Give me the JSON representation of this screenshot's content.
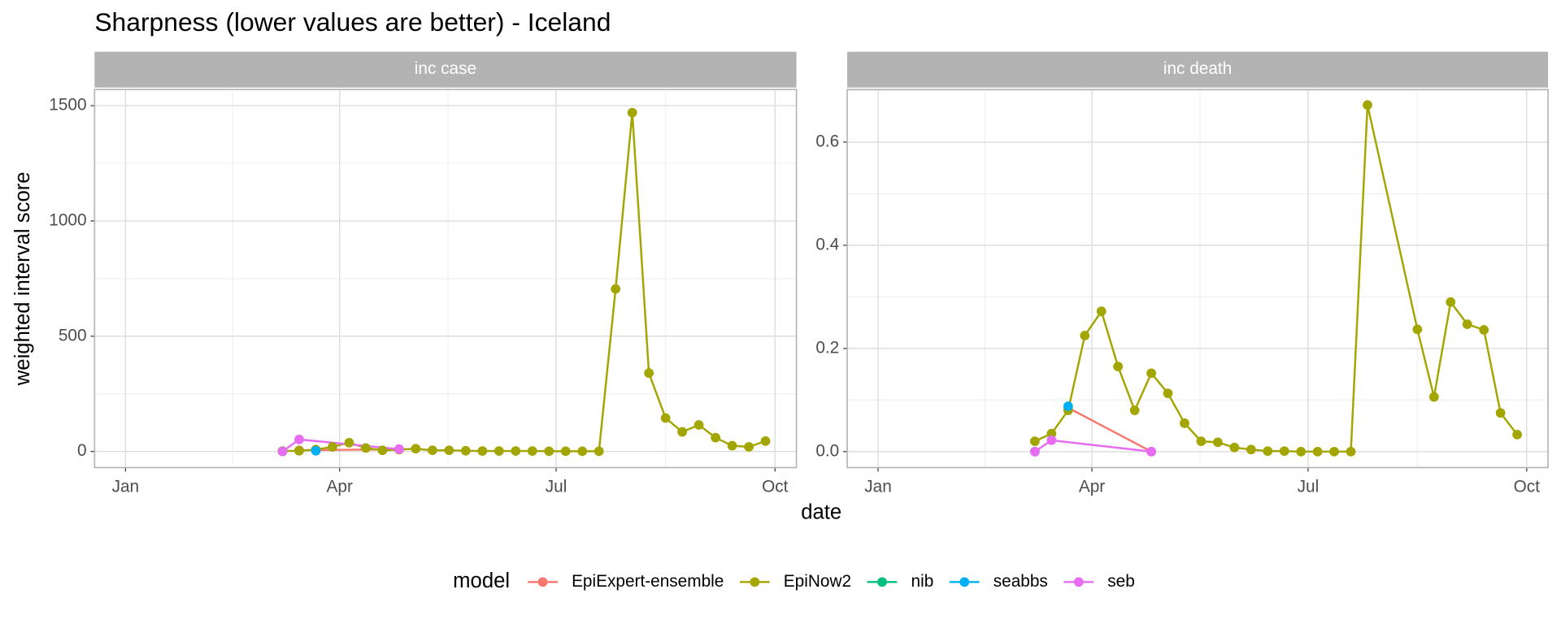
{
  "title": "Sharpness (lower values are better) - Iceland",
  "x_label": "date",
  "y_label": "weighted interval score",
  "legend": {
    "title": "model",
    "position": "bottom"
  },
  "chart_data": [
    {
      "type": "line",
      "facet": "inc case",
      "grid": true,
      "xlim": [
        -13,
        282
      ],
      "ylim": [
        -70,
        1570
      ],
      "xticks": [
        {
          "value": 0,
          "label": "Jan"
        },
        {
          "value": 90,
          "label": "Apr"
        },
        {
          "value": 181,
          "label": "Jul"
        },
        {
          "value": 273,
          "label": "Oct"
        }
      ],
      "yticks": [
        0,
        500,
        1000,
        1500
      ],
      "series": [
        {
          "name": "EpiExpert-ensemble",
          "color": "#F8766D",
          "x": [
            73,
            115
          ],
          "values": [
            5,
            10
          ]
        },
        {
          "name": "EpiNow2",
          "color": "#A3A500",
          "x": [
            66,
            73,
            80,
            87,
            94,
            101,
            108,
            115,
            122,
            129,
            136,
            143,
            150,
            157,
            164,
            171,
            178,
            185,
            192,
            199,
            206,
            213,
            220,
            227,
            234,
            241,
            248,
            255,
            262,
            269
          ],
          "values": [
            2,
            3,
            8,
            20,
            38,
            15,
            5,
            8,
            12,
            5,
            5,
            3,
            2,
            2,
            2,
            2,
            1,
            1,
            1,
            1,
            705,
            1470,
            340,
            145,
            85,
            115,
            60,
            25,
            20,
            45
          ]
        },
        {
          "name": "nib",
          "color": "#00BF7D",
          "x": [
            66
          ],
          "values": [
            0
          ]
        },
        {
          "name": "seabbs",
          "color": "#00B0F6",
          "x": [
            80
          ],
          "values": [
            3
          ]
        },
        {
          "name": "seb",
          "color": "#E76BF3",
          "x": [
            66,
            73,
            115
          ],
          "values": [
            0,
            52,
            10
          ]
        }
      ]
    },
    {
      "type": "line",
      "facet": "inc death",
      "grid": true,
      "xlim": [
        -13,
        282
      ],
      "ylim": [
        -0.031,
        0.702
      ],
      "xticks": [
        {
          "value": 0,
          "label": "Jan"
        },
        {
          "value": 90,
          "label": "Apr"
        },
        {
          "value": 181,
          "label": "Jul"
        },
        {
          "value": 273,
          "label": "Oct"
        }
      ],
      "yticks": [
        {
          "value": 0,
          "label": "0.0"
        },
        0.2,
        0.4,
        0.6
      ],
      "series": [
        {
          "name": "EpiExpert-ensemble",
          "color": "#F8766D",
          "x": [
            80,
            115
          ],
          "values": [
            0.085,
            0
          ]
        },
        {
          "name": "EpiNow2",
          "color": "#A3A500",
          "x": [
            66,
            73,
            80,
            87,
            94,
            101,
            108,
            115,
            122,
            129,
            136,
            143,
            150,
            157,
            164,
            171,
            178,
            185,
            192,
            199,
            206,
            227,
            234,
            241,
            248,
            255,
            262,
            269
          ],
          "values": [
            0.02,
            0.035,
            0.08,
            0.225,
            0.272,
            0.165,
            0.08,
            0.152,
            0.113,
            0.055,
            0.02,
            0.018,
            0.008,
            0.004,
            0.001,
            0.001,
            0,
            0,
            0,
            0,
            0.672,
            0.237,
            0.106,
            0.29,
            0.247,
            0.236,
            0.075,
            0.033
          ]
        },
        {
          "name": "nib",
          "color": "#00BF7D",
          "x": [
            66
          ],
          "values": [
            0
          ]
        },
        {
          "name": "seabbs",
          "color": "#00B0F6",
          "x": [
            80
          ],
          "values": [
            0.088
          ]
        },
        {
          "name": "seb",
          "color": "#E76BF3",
          "x": [
            66,
            73,
            115
          ],
          "values": [
            0,
            0.022,
            0
          ]
        }
      ]
    }
  ]
}
